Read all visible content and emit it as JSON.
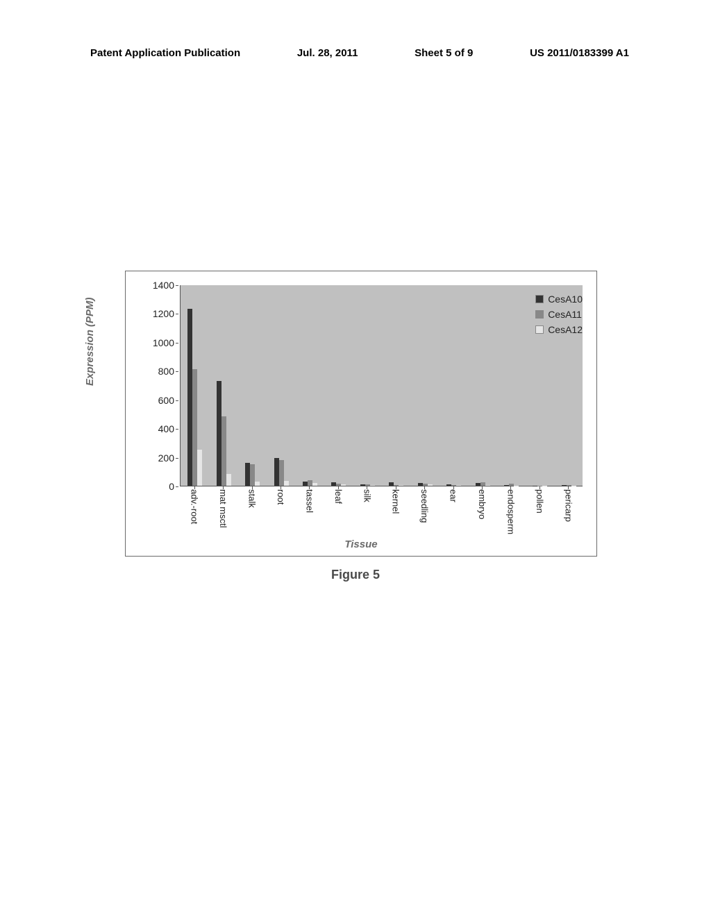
{
  "header": {
    "publication": "Patent Application Publication",
    "date": "Jul. 28, 2011",
    "sheet": "Sheet 5 of 9",
    "docnum": "US 2011/0183399 A1"
  },
  "figure_caption": "Figure 5",
  "chart": {
    "type": "bar",
    "ylabel": "Expression (PPM)",
    "xlabel": "Tissue",
    "ylim": [
      0,
      1400
    ],
    "ytick_step": 200,
    "yticks": [
      0,
      200,
      400,
      600,
      800,
      1000,
      1200,
      1400
    ],
    "background_color": "#c0c0c0",
    "series": [
      {
        "name": "CesA10",
        "color": "#333333"
      },
      {
        "name": "CesA11",
        "color": "#888888"
      },
      {
        "name": "CesA12",
        "color": "#e6e6e6"
      }
    ],
    "categories": [
      "adv.-root",
      "mat msctl",
      "stalk",
      "root",
      "tassel",
      "leaf",
      "silk",
      "kernel",
      "seedling",
      "ear",
      "embryo",
      "endosperm",
      "pollen",
      "pericarp"
    ],
    "data": {
      "adv.-root": [
        1230,
        810,
        250
      ],
      "mat msctl": [
        730,
        485,
        80
      ],
      "stalk": [
        160,
        150,
        30
      ],
      "root": [
        195,
        180,
        35
      ],
      "tassel": [
        30,
        40,
        20
      ],
      "leaf": [
        25,
        15,
        10
      ],
      "silk": [
        10,
        8,
        5
      ],
      "kernel": [
        25,
        5,
        3
      ],
      "seedling": [
        20,
        15,
        8
      ],
      "ear": [
        10,
        5,
        3
      ],
      "embryo": [
        20,
        25,
        5
      ],
      "endosperm": [
        3,
        15,
        2
      ],
      "pollen": [
        2,
        2,
        2
      ],
      "pericarp": [
        3,
        3,
        2
      ]
    },
    "label_fontsize": 15,
    "tick_fontsize": 13,
    "legend_fontsize": 14
  }
}
